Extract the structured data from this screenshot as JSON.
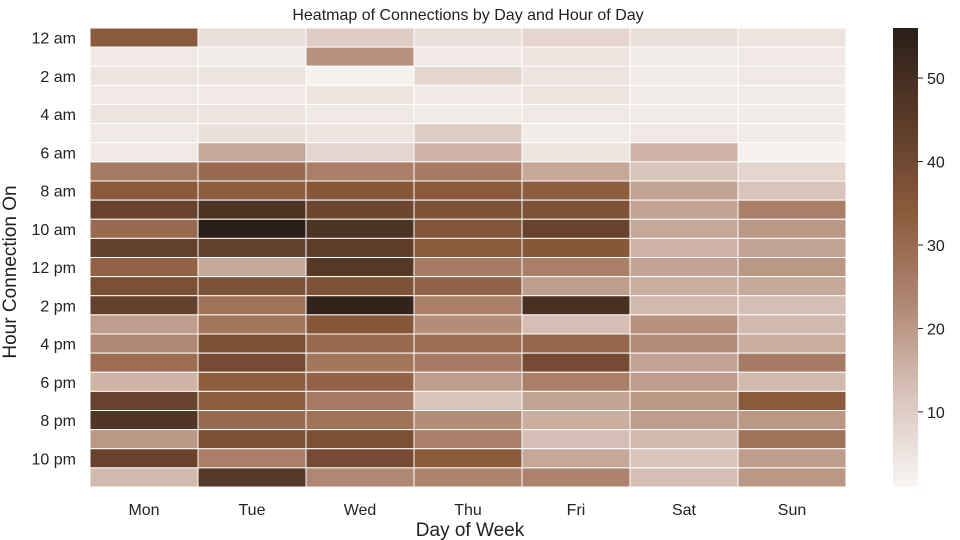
{
  "chart_data": {
    "type": "heatmap",
    "title": "Heatmap of Connections by Day and Hour of Day",
    "xlabel": "Day of Week",
    "ylabel": "Hour Connection On",
    "x_categories": [
      "Mon",
      "Tue",
      "Wed",
      "Thu",
      "Fri",
      "Sat",
      "Sun"
    ],
    "y_categories": [
      0,
      1,
      2,
      3,
      4,
      5,
      6,
      7,
      8,
      9,
      10,
      11,
      12,
      13,
      14,
      15,
      16,
      17,
      18,
      19,
      20,
      21,
      22,
      23
    ],
    "y_tick_labels": [
      "12 am",
      "2 am",
      "4 am",
      "6 am",
      "8 am",
      "10 am",
      "12 pm",
      "2 pm",
      "4 pm",
      "6 pm",
      "8 pm",
      "10 pm"
    ],
    "values": [
      [
        34,
        6,
        10,
        6,
        8,
        6,
        5
      ],
      [
        4,
        3,
        21,
        4,
        5,
        3,
        4
      ],
      [
        5,
        5,
        2,
        8,
        5,
        3,
        4
      ],
      [
        4,
        4,
        5,
        4,
        5,
        3,
        3
      ],
      [
        5,
        5,
        4,
        3,
        4,
        3,
        3
      ],
      [
        4,
        6,
        5,
        10,
        3,
        4,
        3
      ],
      [
        4,
        17,
        8,
        15,
        5,
        15,
        2
      ],
      [
        26,
        30,
        25,
        26,
        17,
        12,
        8
      ],
      [
        34,
        33,
        35,
        34,
        33,
        18,
        12
      ],
      [
        42,
        48,
        41,
        37,
        37,
        18,
        25
      ],
      [
        30,
        56,
        48,
        36,
        42,
        17,
        20
      ],
      [
        43,
        43,
        44,
        34,
        35,
        15,
        18
      ],
      [
        32,
        17,
        46,
        26,
        25,
        18,
        20
      ],
      [
        38,
        37,
        37,
        32,
        19,
        16,
        17
      ],
      [
        43,
        28,
        54,
        25,
        49,
        14,
        13
      ],
      [
        19,
        27,
        35,
        22,
        13,
        21,
        14
      ],
      [
        23,
        38,
        30,
        29,
        31,
        22,
        16
      ],
      [
        29,
        39,
        27,
        26,
        39,
        18,
        26
      ],
      [
        15,
        33,
        32,
        19,
        25,
        19,
        14
      ],
      [
        42,
        33,
        26,
        12,
        18,
        20,
        34
      ],
      [
        47,
        30,
        28,
        22,
        16,
        19,
        20
      ],
      [
        20,
        38,
        38,
        25,
        13,
        14,
        28
      ],
      [
        42,
        25,
        39,
        34,
        17,
        12,
        19
      ],
      [
        14,
        46,
        23,
        24,
        24,
        13,
        20
      ]
    ],
    "zlim": [
      1,
      56
    ],
    "colorbar_ticks": [
      10,
      20,
      30,
      40,
      50
    ],
    "colormap": [
      "#f8f5f4",
      "#d9c4ba",
      "#b08772",
      "#8b5a3c",
      "#5a3b28",
      "#2a1f18"
    ],
    "cell_border_color": "#ffffff",
    "grid": false
  }
}
